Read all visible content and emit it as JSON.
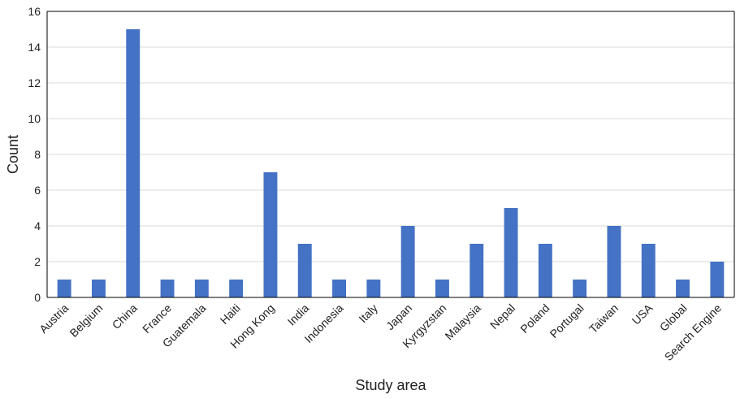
{
  "chart_data": {
    "type": "bar",
    "categories": [
      "Austria",
      "Belgium",
      "China",
      "France",
      "Guatemala",
      "Haiti",
      "Hong Kong",
      "India",
      "Indonesia",
      "Italy",
      "Japan",
      "Kyrgyzstan",
      "Malaysia",
      "Nepal",
      "Poland",
      "Portugal",
      "Taiwan",
      "USA",
      "Global",
      "Search Engine"
    ],
    "values": [
      1,
      1,
      15,
      1,
      1,
      1,
      7,
      3,
      1,
      1,
      4,
      1,
      3,
      5,
      3,
      1,
      4,
      3,
      1,
      2
    ],
    "title": "",
    "xlabel": "Study area",
    "ylabel": "Count",
    "ylim": [
      0,
      16
    ],
    "yticks": [
      0,
      2,
      4,
      6,
      8,
      10,
      12,
      14,
      16
    ],
    "grid": true,
    "legend": "none",
    "bar_color": "#4472C4",
    "grid_color": "#D9D9D9"
  }
}
